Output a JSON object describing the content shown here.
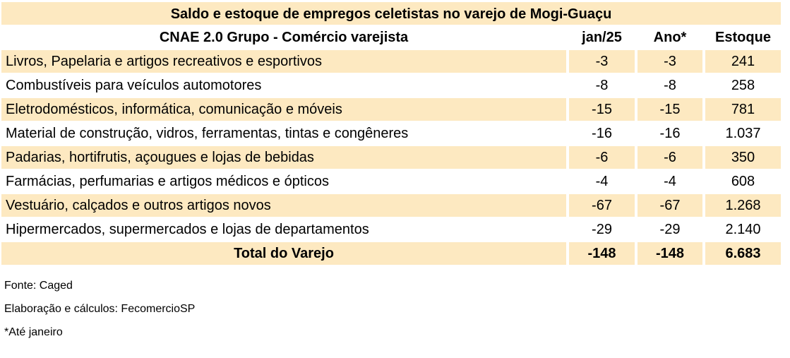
{
  "title": "Saldo e estoque de empregos celetistas no varejo de Mogi-Guaçu",
  "header": {
    "group": "CNAE 2.0 Grupo - Comércio varejista",
    "jan": "jan/25",
    "ano": "Ano*",
    "estoque": "Estoque"
  },
  "rows": [
    {
      "name": "Livros, Papelaria e artigos recreativos e esportivos",
      "jan": "-3",
      "ano": "-3",
      "estoque": "241"
    },
    {
      "name": "Combustíveis para veículos automotores",
      "jan": "-8",
      "ano": "-8",
      "estoque": "258"
    },
    {
      "name": "Eletrodomésticos, informática, comunicação e móveis",
      "jan": "-15",
      "ano": "-15",
      "estoque": "781"
    },
    {
      "name": "Material de construção, vidros, ferramentas, tintas e congêneres",
      "jan": "-16",
      "ano": "-16",
      "estoque": "1.037"
    },
    {
      "name": "Padarias, hortifrutis, açougues e lojas de bebidas",
      "jan": "-6",
      "ano": "-6",
      "estoque": "350"
    },
    {
      "name": "Farmácias, perfumarias e artigos médicos e ópticos",
      "jan": "-4",
      "ano": "-4",
      "estoque": "608"
    },
    {
      "name": "Vestuário, calçados e outros artigos novos",
      "jan": "-67",
      "ano": "-67",
      "estoque": "1.268"
    },
    {
      "name": "Hipermercados, supermercados e lojas de departamentos",
      "jan": "-29",
      "ano": "-29",
      "estoque": "2.140"
    }
  ],
  "total": {
    "name": "Total do Varejo",
    "jan": "-148",
    "ano": "-148",
    "estoque": "6.683"
  },
  "notes": {
    "source": "Fonte: Caged",
    "elaboration": "Elaboração e cálculos: FecomercioSP",
    "footnote": "*Até janeiro"
  },
  "colors": {
    "shade": "#fde9c1",
    "background": "#ffffff"
  }
}
